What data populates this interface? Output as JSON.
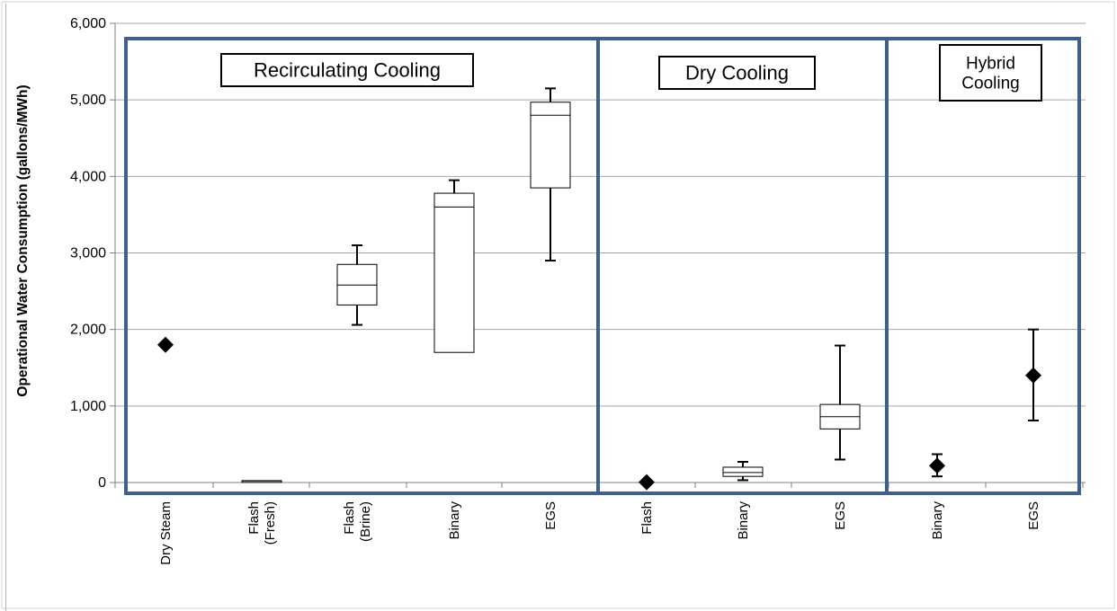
{
  "chart_data": {
    "type": "box",
    "ylabel": "Operational Water Consumption (gallons/MWh)",
    "ylim": [
      0,
      6000
    ],
    "yticks": [
      0,
      1000,
      2000,
      3000,
      4000,
      5000,
      6000
    ],
    "ytick_labels": [
      "0",
      "1,000",
      "2,000",
      "3,000",
      "4,000",
      "5,000",
      "6,000"
    ],
    "grid": true,
    "groups": [
      {
        "label": "Recirculating Cooling",
        "label_lines": [
          "Recirculating Cooling"
        ]
      },
      {
        "label": "Dry Cooling",
        "label_lines": [
          "Dry Cooling"
        ]
      },
      {
        "label": "Hybrid Cooling",
        "label_lines": [
          "Hybrid",
          "Cooling"
        ]
      }
    ],
    "categories": [
      {
        "label_lines": [
          "Dry Steam"
        ],
        "group": 0,
        "kind": "point",
        "value": 1800
      },
      {
        "label_lines": [
          "Flash",
          "(Fresh)"
        ],
        "group": 0,
        "kind": "box",
        "min": 15,
        "q1": 15,
        "median": 20,
        "q3": 25,
        "max": 25
      },
      {
        "label_lines": [
          "Flash",
          "(Brine)"
        ],
        "group": 0,
        "kind": "box",
        "min": 2060,
        "q1": 2320,
        "median": 2580,
        "q3": 2850,
        "max": 3100
      },
      {
        "label_lines": [
          "Binary"
        ],
        "group": 0,
        "kind": "box",
        "min": 1700,
        "q1": 1700,
        "median": 3600,
        "q3": 3780,
        "max": 3950
      },
      {
        "label_lines": [
          "EGS"
        ],
        "group": 0,
        "kind": "box",
        "min": 2900,
        "q1": 3850,
        "median": 4800,
        "q3": 4970,
        "max": 5150
      },
      {
        "label_lines": [
          "Flash"
        ],
        "group": 1,
        "kind": "point",
        "value": 5
      },
      {
        "label_lines": [
          "Binary"
        ],
        "group": 1,
        "kind": "box",
        "min": 30,
        "q1": 80,
        "median": 130,
        "q3": 200,
        "max": 270
      },
      {
        "label_lines": [
          "EGS"
        ],
        "group": 1,
        "kind": "box",
        "min": 300,
        "q1": 700,
        "median": 860,
        "q3": 1020,
        "max": 1790
      },
      {
        "label_lines": [
          "Binary"
        ],
        "group": 2,
        "kind": "point",
        "value": 220,
        "low": 80,
        "high": 370
      },
      {
        "label_lines": [
          "EGS"
        ],
        "group": 2,
        "kind": "point",
        "value": 1400,
        "low": 810,
        "high": 2000
      }
    ]
  },
  "colors": {
    "group_border": "#3f5f8d",
    "gridline": "#a6a6a6",
    "mark": "#000000",
    "box_fill": "#ffffff"
  }
}
